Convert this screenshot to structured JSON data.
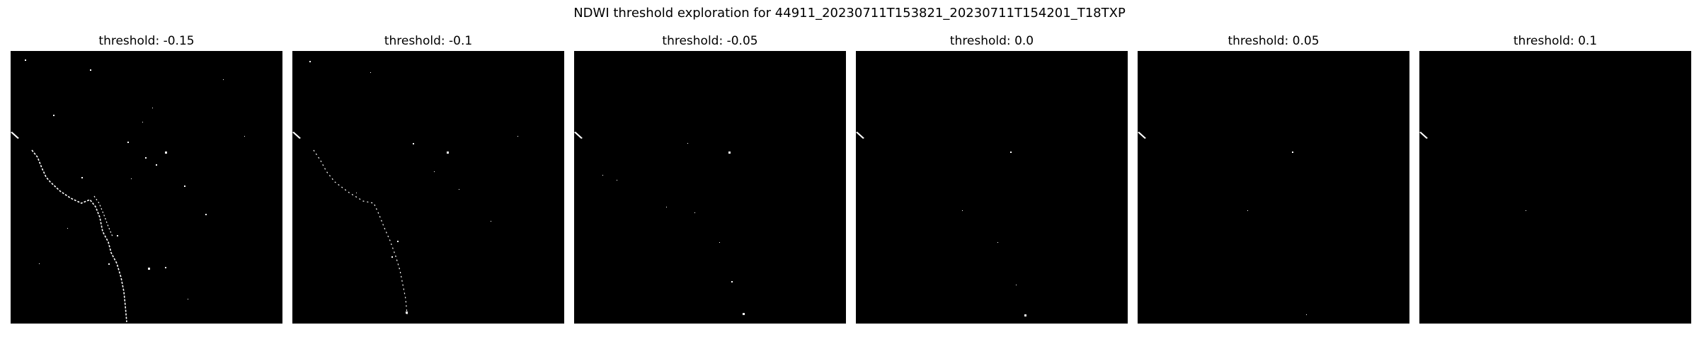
{
  "figure": {
    "title": "NDWI threshold exploration for 44911_20230711T153821_20230711T154201_T18TXP"
  },
  "panels": [
    {
      "title": "threshold: -0.15",
      "threshold": -0.15
    },
    {
      "title": "threshold: -0.1",
      "threshold": -0.1
    },
    {
      "title": "threshold: -0.05",
      "threshold": -0.05
    },
    {
      "title": "threshold: 0.0",
      "threshold": 0.0
    },
    {
      "title": "threshold: 0.05",
      "threshold": 0.05
    },
    {
      "title": "threshold: 0.1",
      "threshold": 0.1
    }
  ],
  "colors": {
    "background": "#000000",
    "water": "#ffffff"
  }
}
